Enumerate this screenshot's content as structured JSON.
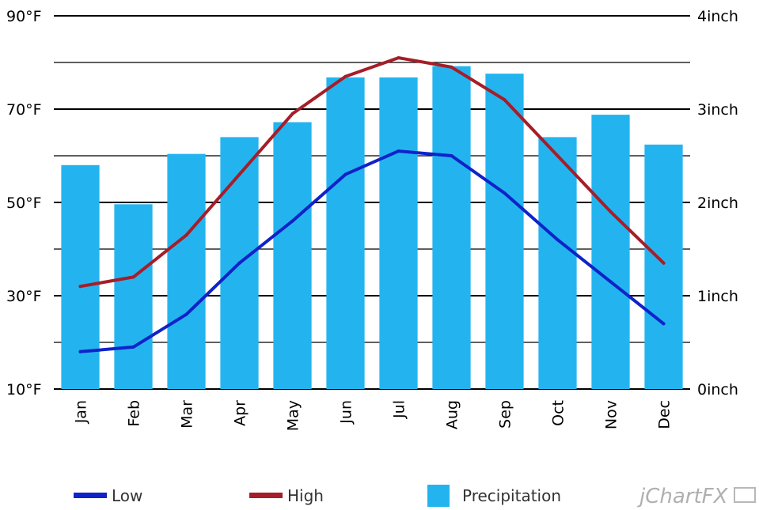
{
  "chart_data": {
    "type": "bar",
    "categories": [
      "Jan",
      "Feb",
      "Mar",
      "Apr",
      "May",
      "Jun",
      "Jul",
      "Aug",
      "Sep",
      "Oct",
      "Nov",
      "Dec"
    ],
    "series": [
      {
        "name": "Low",
        "type": "line",
        "axis": "left",
        "color": "#0f23c8",
        "values": [
          18,
          19,
          26,
          37,
          46,
          56,
          61,
          60,
          52,
          42,
          33,
          24
        ]
      },
      {
        "name": "High",
        "type": "line",
        "axis": "left",
        "color": "#a51e28",
        "values": [
          32,
          34,
          43,
          56,
          69,
          77,
          81,
          79,
          72,
          60,
          48,
          37
        ]
      },
      {
        "name": "Precipitation",
        "type": "bar",
        "axis": "right",
        "color": "#23b4f0",
        "values": [
          2.4,
          1.98,
          2.52,
          2.7,
          2.86,
          3.34,
          3.34,
          3.46,
          3.38,
          2.7,
          2.94,
          2.62
        ]
      }
    ],
    "y_left": {
      "ylim": [
        10,
        90
      ],
      "ticks": [
        10,
        30,
        50,
        70,
        90
      ],
      "unit": "°F",
      "tick_labels": [
        "10°F",
        "30°F",
        "50°F",
        "70°F",
        "90°F"
      ]
    },
    "y_right": {
      "ylim": [
        0,
        4
      ],
      "ticks": [
        0,
        1,
        2,
        3,
        4
      ],
      "unit": "inch",
      "tick_labels": [
        "0inch",
        "1inch",
        "2inch",
        "3inch",
        "4inch"
      ]
    },
    "grid": true,
    "legend_position": "bottom"
  },
  "branding": {
    "label": "jChartFX"
  }
}
